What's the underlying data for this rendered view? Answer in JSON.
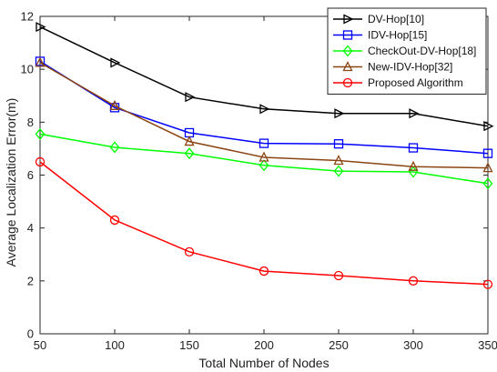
{
  "chart_data": {
    "type": "line",
    "title": "",
    "xlabel": "Total Number of Nodes",
    "ylabel": "Average Localization Error(m)",
    "x": [
      50,
      100,
      150,
      200,
      250,
      300,
      350
    ],
    "xlim": [
      50,
      350
    ],
    "ylim": [
      0,
      12
    ],
    "xticks": [
      "50",
      "100",
      "150",
      "200",
      "250",
      "300",
      "350"
    ],
    "yticks": [
      "0",
      "2",
      "4",
      "6",
      "8",
      "10",
      "12"
    ],
    "grid": false,
    "legend_position": "top-right",
    "series": [
      {
        "name": "DV-Hop[10]",
        "color": "#000000",
        "marker": "triangle-right",
        "values": [
          11.6,
          10.25,
          8.95,
          8.5,
          8.33,
          8.33,
          7.85
        ]
      },
      {
        "name": "IDV-Hop[15]",
        "color": "#0000ff",
        "marker": "square",
        "values": [
          10.3,
          8.55,
          7.6,
          7.2,
          7.18,
          7.03,
          6.82
        ]
      },
      {
        "name": "CheckOut-DV-Hop[18]",
        "color": "#00ff00",
        "marker": "diamond",
        "values": [
          7.55,
          7.05,
          6.82,
          6.37,
          6.15,
          6.12,
          5.68
        ]
      },
      {
        "name": "New-IDV-Hop[32]",
        "color": "#8b4513",
        "marker": "triangle-up",
        "values": [
          10.25,
          8.62,
          7.27,
          6.67,
          6.55,
          6.32,
          6.27
        ]
      },
      {
        "name": "Proposed Algorithm",
        "color": "#ff0000",
        "marker": "circle",
        "values": [
          6.5,
          4.3,
          3.1,
          2.37,
          2.2,
          2.0,
          1.87
        ]
      }
    ]
  }
}
